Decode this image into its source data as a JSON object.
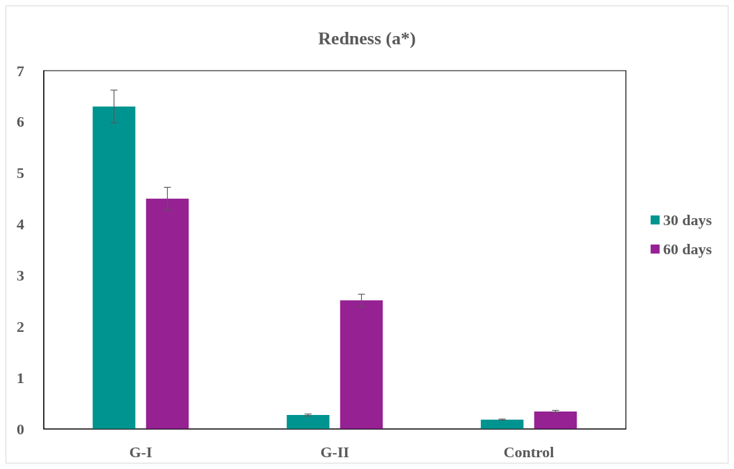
{
  "chart_data": {
    "type": "bar",
    "title": "Redness (a*)",
    "categories": [
      "G-I",
      "G-II",
      "Control"
    ],
    "series": [
      {
        "name": "30 days",
        "color": "#009490",
        "values": [
          6.3,
          0.27,
          0.18
        ],
        "errors": [
          0.32,
          0.02,
          0.01
        ]
      },
      {
        "name": "60 days",
        "color": "#952193",
        "values": [
          4.5,
          2.51,
          0.34
        ],
        "errors": [
          0.22,
          0.12,
          0.02
        ]
      }
    ],
    "ylim": [
      0,
      7
    ],
    "yticks": [
      0,
      1,
      2,
      3,
      4,
      5,
      6,
      7
    ],
    "grid": false,
    "legend": "right"
  }
}
